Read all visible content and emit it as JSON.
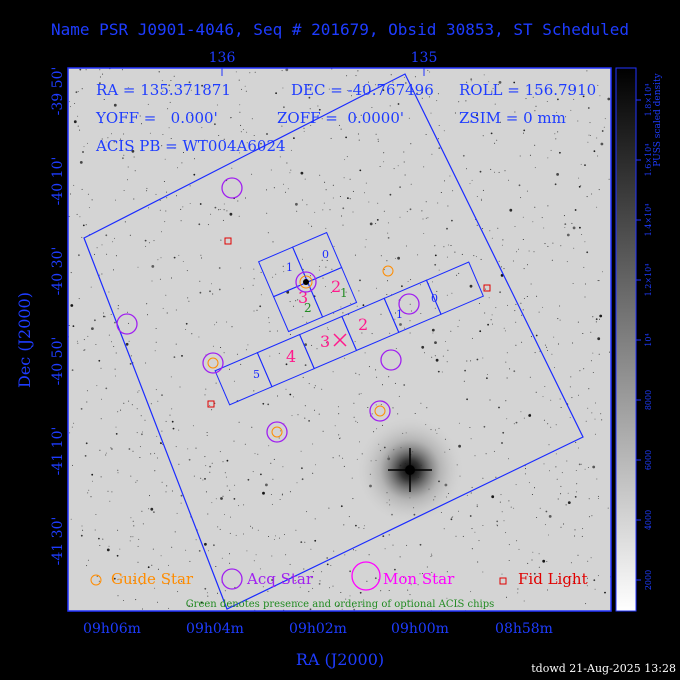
{
  "title": "Name PSR J0901-4046, Seq # 201679, Obsid 30853, ST Scheduled",
  "info": {
    "ra": "RA = 135.371871",
    "dec": "DEC = -40.767496",
    "roll": "ROLL = 156.7910",
    "yoff": "YOFF =   0.000'",
    "zoff": "ZOFF =  0.0000'",
    "zsim": "ZSIM = 0 mm",
    "acis_pb": "ACIS PB = WT004A6024"
  },
  "top_ticks": [
    "136",
    "135"
  ],
  "left_ticks": [
    "-39 50'",
    "-40 10'",
    "-40 30'",
    "-40 50'",
    "-41 10'",
    "-41 30'"
  ],
  "bottom_ticks": [
    "09h06m",
    "09h04m",
    "09h02m",
    "09h00m",
    "08h58m"
  ],
  "xlabel": "RA (J2000)",
  "ylabel": "Dec (J2000)",
  "colorbar": {
    "label": "PUSS scaled density",
    "ticks": [
      "2000",
      "4000",
      "6000",
      "8000",
      "10⁴",
      "1.2×10⁴",
      "1.4×10⁴",
      "1.6×10⁴",
      "1.8×10⁴"
    ]
  },
  "legend": {
    "guide": "Guide Star",
    "acq": "Acq Star",
    "mon": "Mon Star",
    "fid": "Fid Light",
    "note": "Green denotes presence and ordering of optional ACIS chips"
  },
  "chips": {
    "i0": "0",
    "i1": "1",
    "i2": "2",
    "i3": "3",
    "s0": "0",
    "s1": "1",
    "s2": "2",
    "s3": "3",
    "s4": "4",
    "s5": "5",
    "opt_i2": "1",
    "opt_i3": "2"
  },
  "footer": "tdowd 21-Aug-2025 13:28",
  "colors": {
    "frame": "#2233ff",
    "text_blue": "#1e3cff",
    "guide": "#ff8c00",
    "acq": "#a020f0",
    "mon": "#ff00ff",
    "fid": "#e00000",
    "chip_label": "#ff1a8c",
    "optional": "#228b22",
    "sky": "#d4d4d4"
  }
}
